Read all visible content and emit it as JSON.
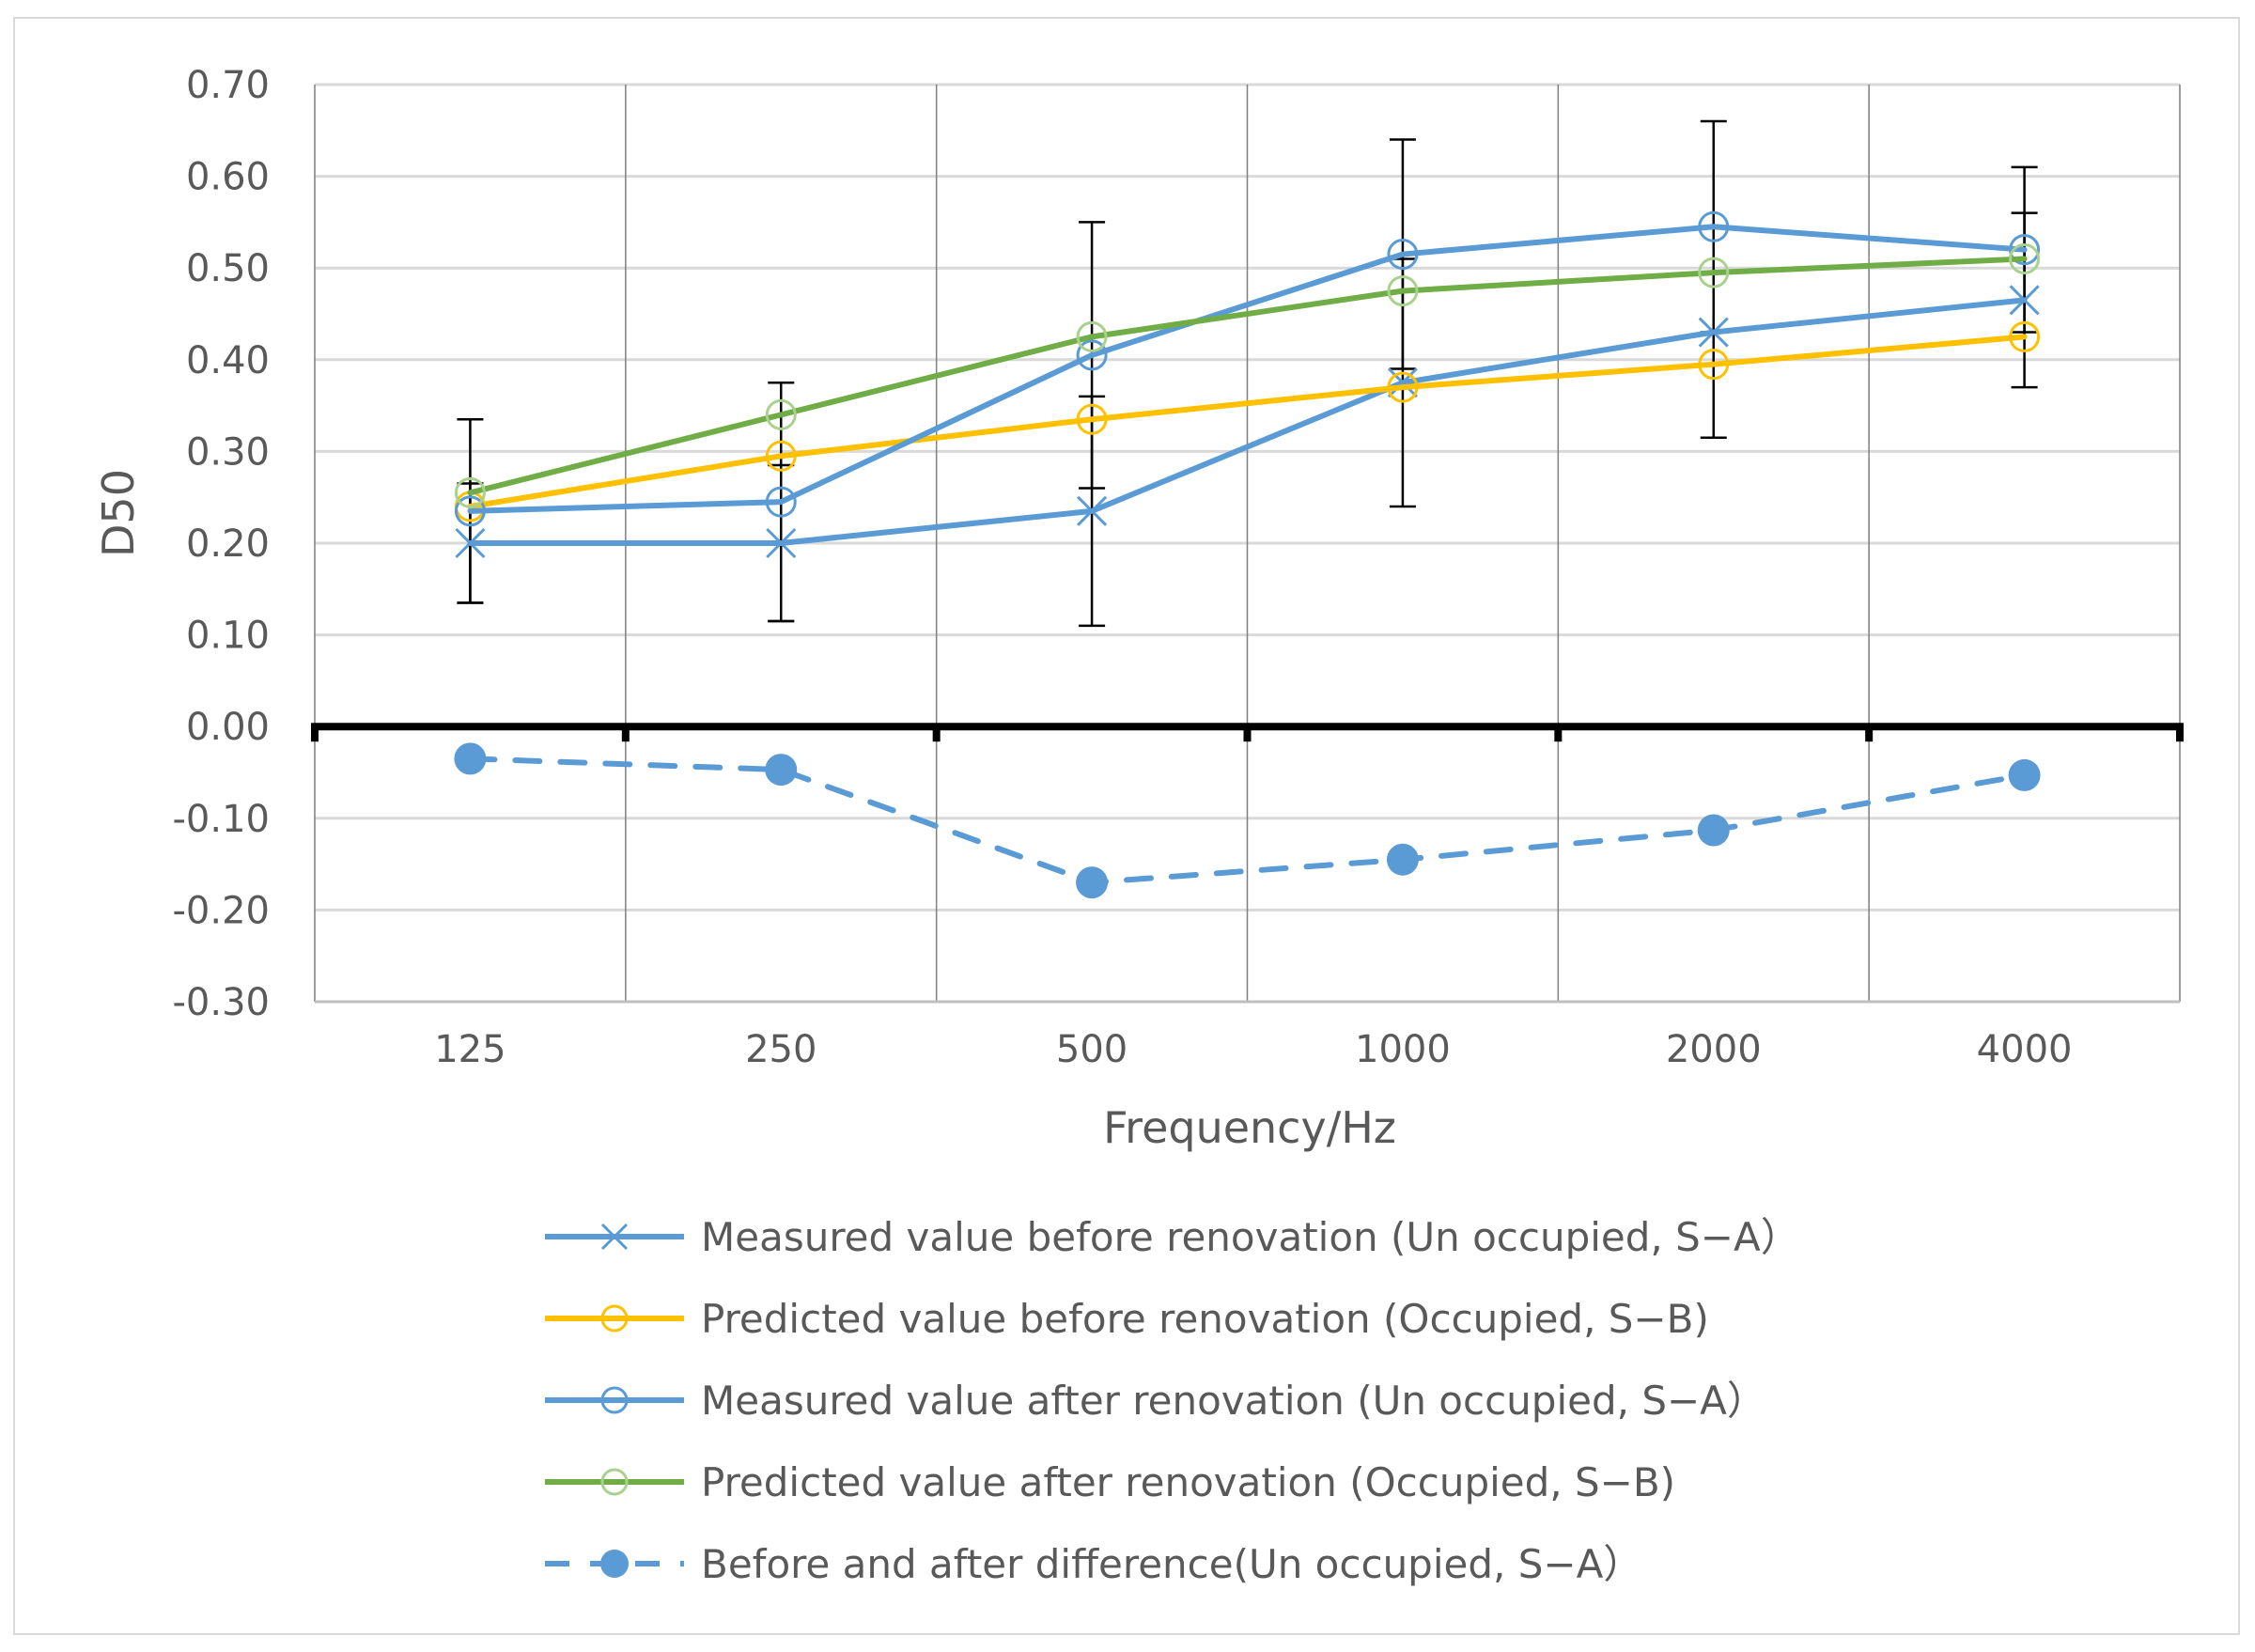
{
  "chart_data": {
    "type": "line",
    "xlabel": "Frequency/Hz",
    "ylabel": "D50",
    "categories": [
      "125",
      "250",
      "500",
      "1000",
      "2000",
      "4000"
    ],
    "ylim": [
      -0.3,
      0.7
    ],
    "yticks": [
      0.7,
      0.6,
      0.5,
      0.4,
      0.3,
      0.2,
      0.1,
      0.0,
      -0.1,
      -0.2,
      -0.3
    ],
    "ytick_labels": [
      "0.70",
      "0.60",
      "0.50",
      "0.40",
      "0.30",
      "0.20",
      "0.10",
      "0.00",
      "-0.10",
      "-0.20",
      "-0.30"
    ],
    "grid": true,
    "legend_position": "bottom",
    "series": [
      {
        "name": "Measured value before renovation (Un occupied, S−A）",
        "color": "#5b9bd5",
        "marker": "x",
        "dashed": false,
        "values": [
          0.2,
          0.2,
          0.235,
          0.375,
          0.43,
          0.465
        ],
        "error": [
          0.065,
          0.085,
          0.125,
          0.135,
          0.115,
          0.095
        ]
      },
      {
        "name": "Predicted value before renovation (Occupied, S−B)",
        "color": "#ffc000",
        "marker": "circle-open",
        "dashed": false,
        "values": [
          0.24,
          0.295,
          0.335,
          0.37,
          0.395,
          0.425
        ]
      },
      {
        "name": "Measured value after renovation (Un occupied, S−A）",
        "color": "#5b9bd5",
        "marker": "circle-open",
        "dashed": false,
        "values": [
          0.235,
          0.245,
          0.405,
          0.515,
          0.545,
          0.52
        ],
        "error": [
          0.1,
          0.13,
          0.145,
          0.125,
          0.115,
          0.09
        ]
      },
      {
        "name": "Predicted value after renovation (Occupied, S−B)",
        "color": "#70ad47",
        "marker": "circle-open",
        "dashed": false,
        "values": [
          0.255,
          0.34,
          0.425,
          0.475,
          0.495,
          0.51
        ]
      },
      {
        "name": "Before and after difference(Un occupied, S−A）",
        "color": "#5b9bd5",
        "marker": "circle-filled",
        "dashed": true,
        "values": [
          -0.035,
          -0.047,
          -0.17,
          -0.145,
          -0.113,
          -0.053
        ]
      }
    ]
  }
}
